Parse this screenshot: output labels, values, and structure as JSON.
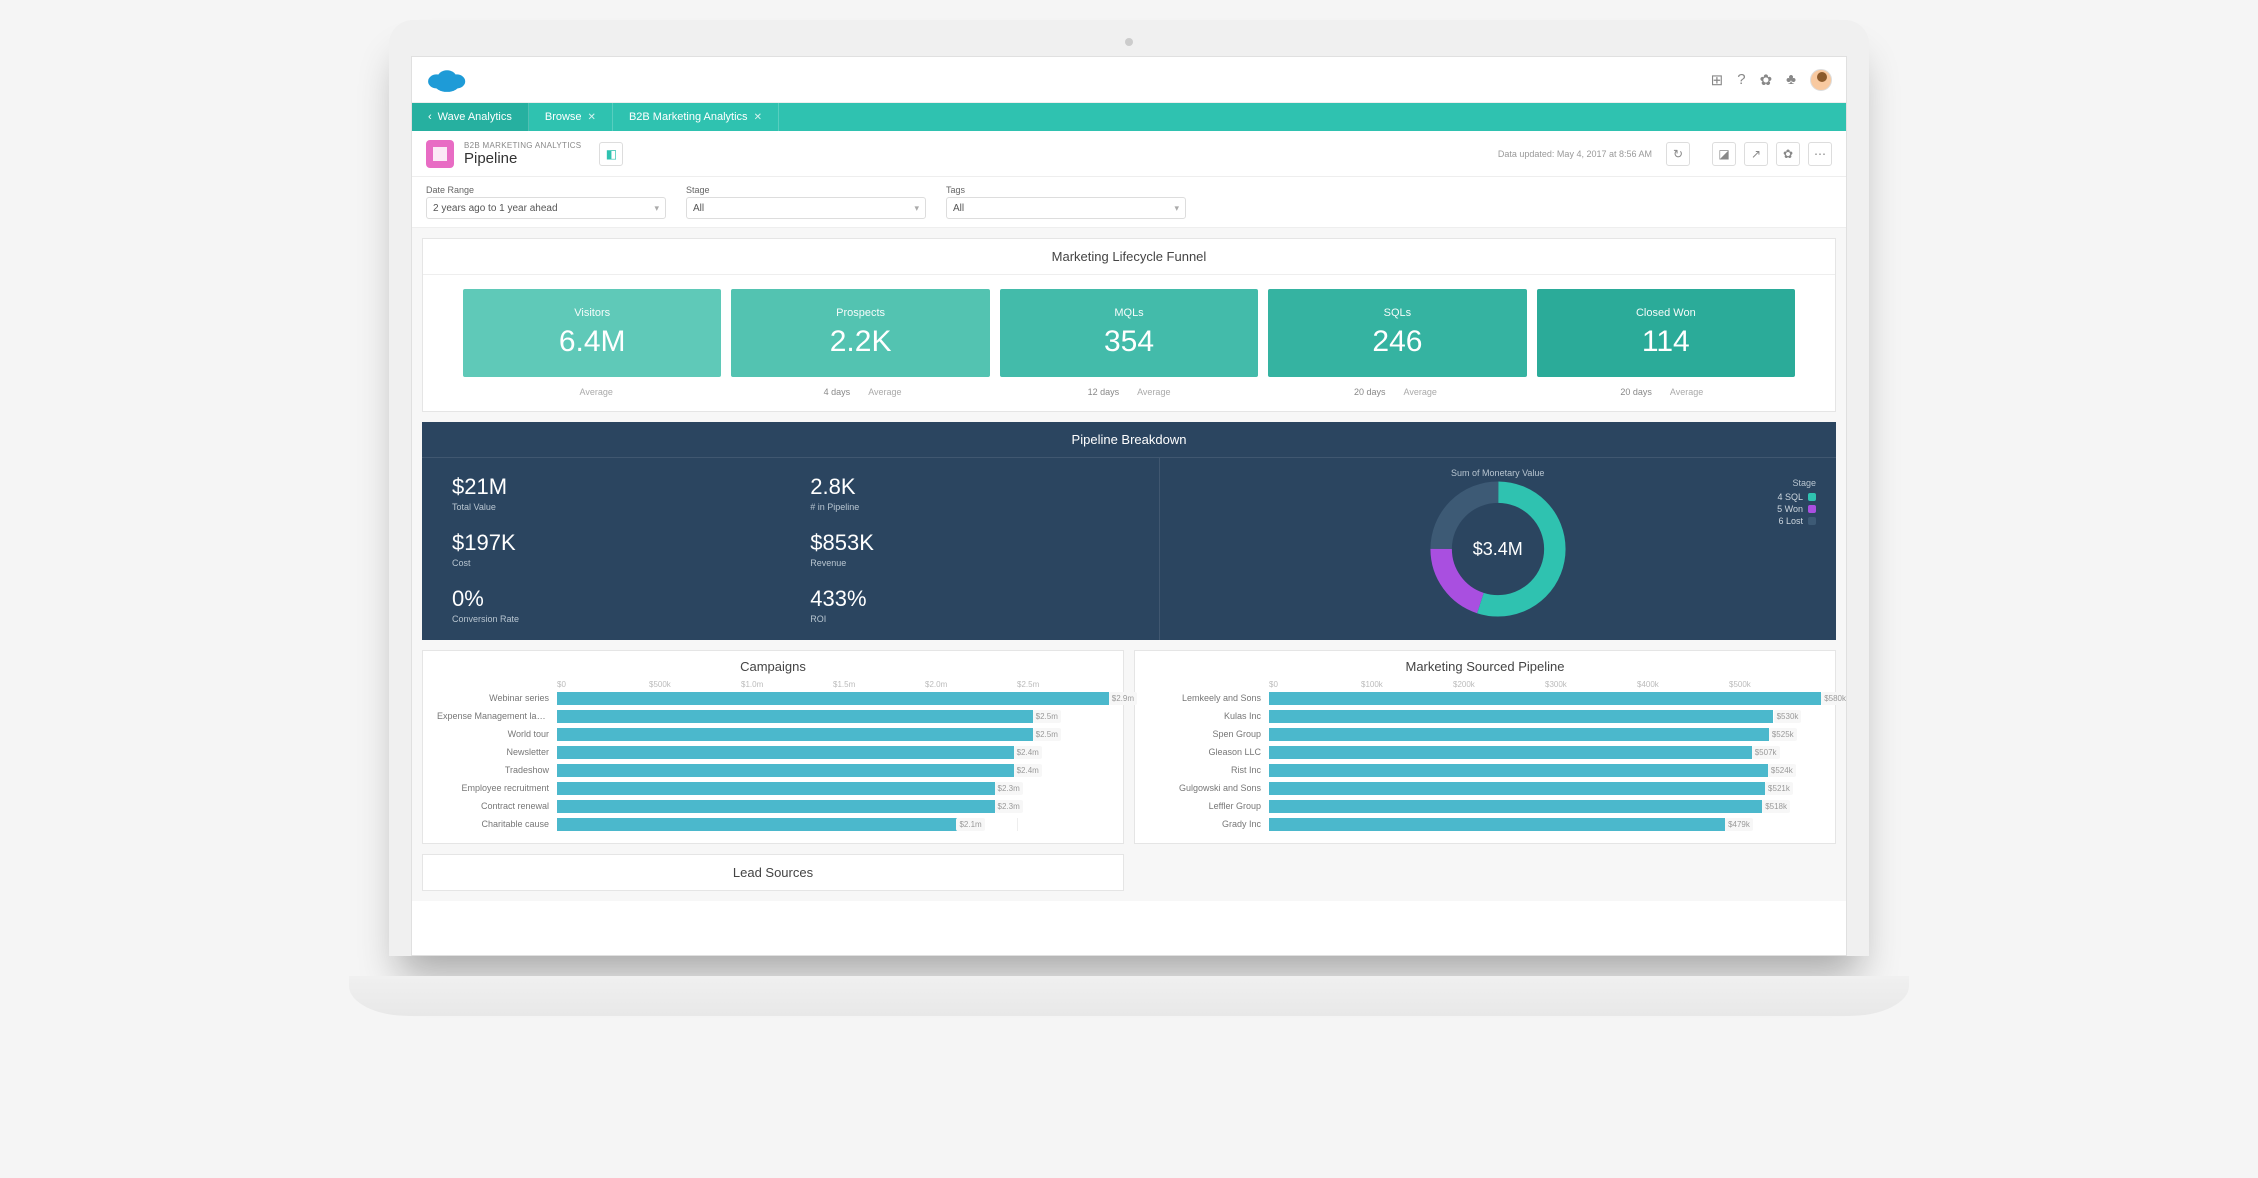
{
  "header": {
    "icons": [
      "apps",
      "help",
      "settings",
      "notifications"
    ]
  },
  "nav": {
    "home": "Wave Analytics",
    "tabs": [
      {
        "label": "Browse"
      },
      {
        "label": "B2B Marketing Analytics"
      }
    ]
  },
  "title": {
    "subtitle": "B2B MARKETING ANALYTICS",
    "main": "Pipeline",
    "updated": "Data updated: May 4, 2017 at 8:56 AM"
  },
  "filters": [
    {
      "label": "Date Range",
      "value": "2 years ago to 1 year ahead"
    },
    {
      "label": "Stage",
      "value": "All"
    },
    {
      "label": "Tags",
      "value": "All"
    }
  ],
  "funnel": {
    "title": "Marketing Lifecycle Funnel",
    "tiles": [
      {
        "label": "Visitors",
        "value": "6.4M",
        "color": "#5fc9b8"
      },
      {
        "label": "Prospects",
        "value": "2.2K",
        "color": "#53c3b1"
      },
      {
        "label": "MQLs",
        "value": "354",
        "color": "#43bbaa"
      },
      {
        "label": "SQLs",
        "value": "246",
        "color": "#35b3a1"
      },
      {
        "label": "Closed Won",
        "value": "114",
        "color": "#2bab99"
      }
    ],
    "avg_label": "Average",
    "durations": [
      "",
      "4 days",
      "12 days",
      "20 days",
      "20 days"
    ]
  },
  "breakdown": {
    "title": "Pipeline Breakdown",
    "background": "#2b4560",
    "metrics": [
      {
        "value": "$21M",
        "label": "Total Value"
      },
      {
        "value": "2.8K",
        "label": "# in Pipeline"
      },
      {
        "value": "$197K",
        "label": "Cost"
      },
      {
        "value": "$853K",
        "label": "Revenue"
      },
      {
        "value": "0%",
        "label": "Conversion Rate"
      },
      {
        "value": "433%",
        "label": "ROI"
      }
    ],
    "donut": {
      "title": "Sum of Monetary Value",
      "center": "$3.4M",
      "slices": [
        {
          "pct": 55,
          "color": "#2fc2b0"
        },
        {
          "pct": 20,
          "color": "#a94fe0"
        },
        {
          "pct": 25,
          "color": "#3d5a75"
        }
      ],
      "legend_title": "Stage",
      "legend": [
        {
          "label": "4 SQL",
          "color": "#2fc2b0"
        },
        {
          "label": "5 Won",
          "color": "#a94fe0"
        },
        {
          "label": "6 Lost",
          "color": "#3d5a75"
        }
      ]
    }
  },
  "charts": {
    "bar_color": "#4bb8cc",
    "campaigns": {
      "title": "Campaigns",
      "axis": [
        "$0",
        "$500k",
        "$1.0m",
        "$1.5m",
        "$2.0m",
        "$2.5m"
      ],
      "max": 2.9,
      "rows": [
        {
          "label": "Webinar series",
          "value": 2.9,
          "value_label": "$2.9m"
        },
        {
          "label": "Expense Management launch",
          "value": 2.5,
          "value_label": "$2.5m"
        },
        {
          "label": "World tour",
          "value": 2.5,
          "value_label": "$2.5m"
        },
        {
          "label": "Newsletter",
          "value": 2.4,
          "value_label": "$2.4m"
        },
        {
          "label": "Tradeshow",
          "value": 2.4,
          "value_label": "$2.4m"
        },
        {
          "label": "Employee recruitment",
          "value": 2.3,
          "value_label": "$2.3m"
        },
        {
          "label": "Contract renewal",
          "value": 2.3,
          "value_label": "$2.3m"
        },
        {
          "label": "Charitable cause",
          "value": 2.1,
          "value_label": "$2.1m"
        }
      ]
    },
    "lead_sources": {
      "title": "Lead Sources"
    },
    "pipeline": {
      "title": "Marketing Sourced Pipeline",
      "axis": [
        "$0",
        "$100k",
        "$200k",
        "$300k",
        "$400k",
        "$500k"
      ],
      "max": 580,
      "rows": [
        {
          "label": "Lemkeely and Sons",
          "value": 580,
          "value_label": "$580k"
        },
        {
          "label": "Kulas Inc",
          "value": 530,
          "value_label": "$530k"
        },
        {
          "label": "Spen Group",
          "value": 525,
          "value_label": "$525k"
        },
        {
          "label": "Gleason LLC",
          "value": 507,
          "value_label": "$507k"
        },
        {
          "label": "Rist Inc",
          "value": 524,
          "value_label": "$524k"
        },
        {
          "label": "Gulgowski and Sons",
          "value": 521,
          "value_label": "$521k"
        },
        {
          "label": "Leffler Group",
          "value": 518,
          "value_label": "$518k"
        },
        {
          "label": "Grady Inc",
          "value": 479,
          "value_label": "$479k"
        }
      ]
    }
  }
}
